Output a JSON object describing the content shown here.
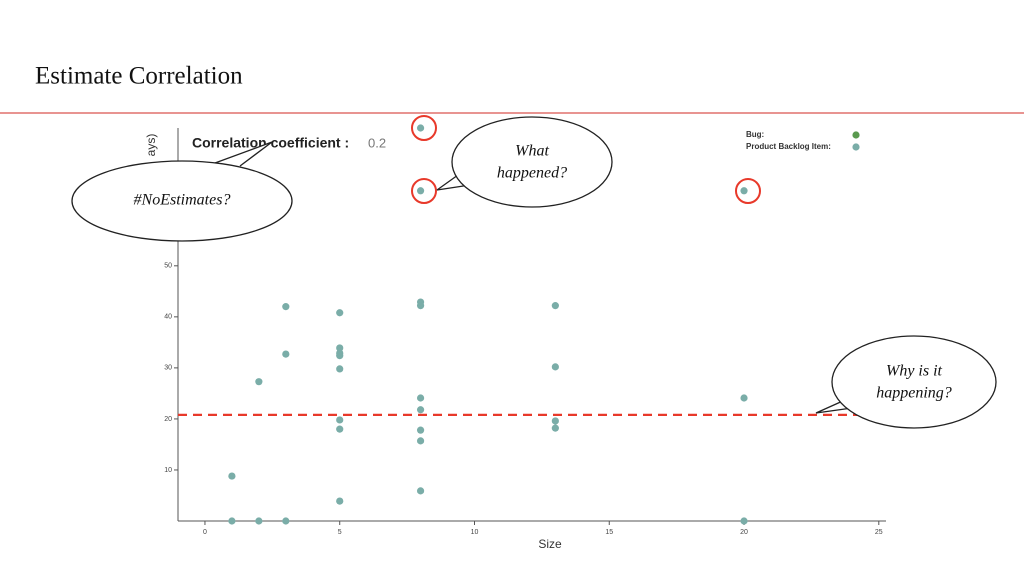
{
  "slide": {
    "title": "Estimate Correlation",
    "callouts": [
      [
        "#NoEstimates?"
      ],
      [
        "What",
        "happened?"
      ],
      [
        "Why is it",
        "happening?"
      ]
    ]
  },
  "chart_data": {
    "type": "scatter",
    "subtitle": "Correlation coefficient :",
    "coefficient": 0.2,
    "x_label": "Size",
    "y_label": "ays)",
    "xlim": [
      -1,
      25
    ],
    "xticks": [
      0,
      5,
      10,
      15,
      20,
      25
    ],
    "ylim": [
      0,
      77
    ],
    "yticks": [
      10,
      20,
      30,
      40,
      50
    ],
    "reference_line": 20.8,
    "reference_color": "#e8392a",
    "series": [
      {
        "name": "Bug:",
        "color": "#5a9a4f",
        "x": [],
        "values": []
      },
      {
        "name": "Product Backlog Item:",
        "color": "#7aada8",
        "x": [
          1,
          1,
          2,
          2,
          3,
          3,
          3,
          5,
          5,
          5,
          5,
          5,
          5,
          5,
          5,
          8,
          8,
          8,
          8,
          8,
          8,
          8,
          8,
          8,
          13,
          13,
          13,
          13,
          20,
          20,
          20
        ],
        "values": [
          8.8,
          0,
          27.3,
          0,
          42,
          32.7,
          0,
          40.8,
          33.9,
          32.9,
          32.4,
          29.8,
          19.8,
          18,
          3.9,
          77,
          64.7,
          42.9,
          42.2,
          24.1,
          21.8,
          17.8,
          15.7,
          5.9,
          42.2,
          30.2,
          19.6,
          18.2,
          64.7,
          24.1,
          0
        ]
      }
    ]
  }
}
